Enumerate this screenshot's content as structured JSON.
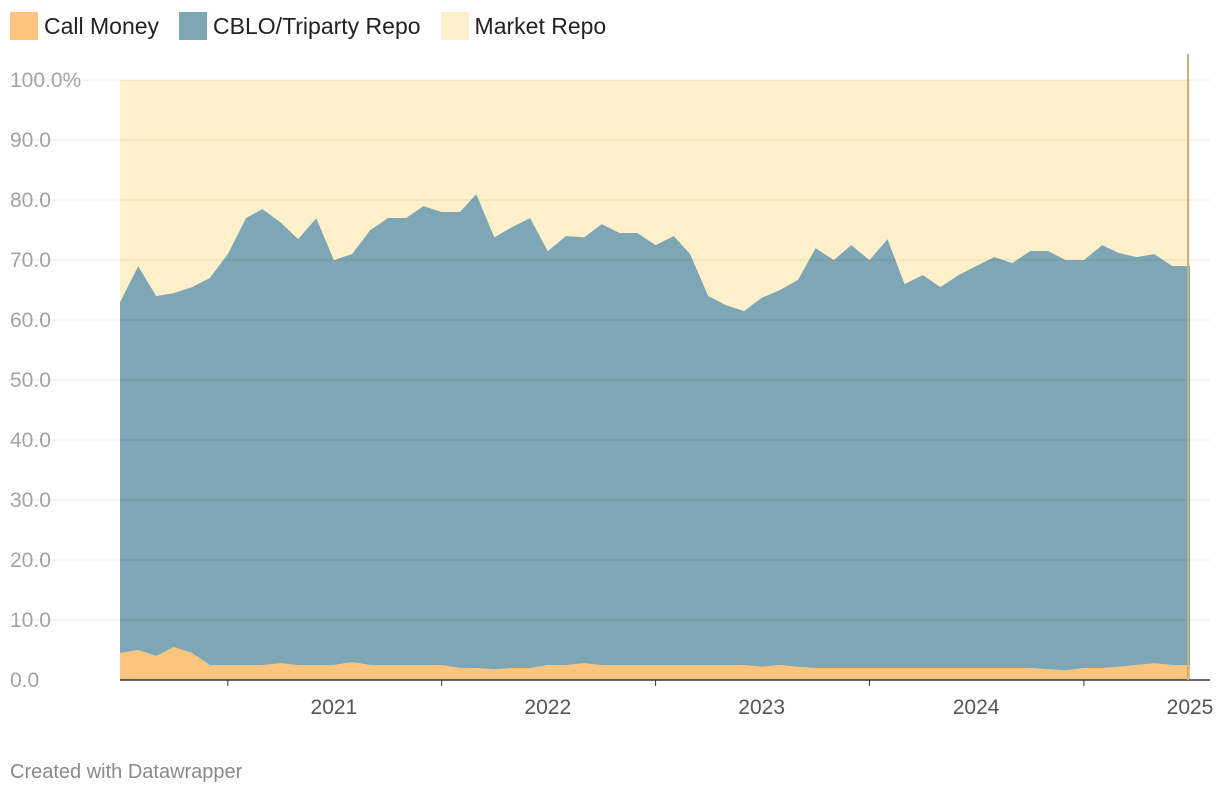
{
  "legend": [
    {
      "label": "Call Money",
      "color": "#fbc57f"
    },
    {
      "label": "CBLO/Triparty Repo",
      "color": "#7fa6b4"
    },
    {
      "label": "Market Repo",
      "color": "#fff0cc"
    }
  ],
  "credit": "Created with Datawrapper",
  "chart_data": {
    "type": "area",
    "stacked": true,
    "y_unit": "%",
    "ylim": [
      0,
      100
    ],
    "xlim": [
      "2020-07-01",
      "2025-07-01"
    ],
    "yticks": [
      "0.0",
      "10.0",
      "20.0",
      "30.0",
      "40.0",
      "50.0",
      "60.0",
      "70.0",
      "80.0",
      "90.0",
      "100.0%"
    ],
    "xticks": [
      "2021",
      "2022",
      "2023",
      "2024",
      "2025"
    ],
    "grid": "horizontal",
    "legend_position": "top-left",
    "x": [
      "2020-07-01",
      "2020-08-01",
      "2020-09-01",
      "2020-10-01",
      "2020-11-01",
      "2020-12-01",
      "2021-01-01",
      "2021-02-01",
      "2021-03-01",
      "2021-04-01",
      "2021-05-01",
      "2021-06-01",
      "2021-07-01",
      "2021-08-01",
      "2021-09-01",
      "2021-10-01",
      "2021-11-01",
      "2021-12-01",
      "2022-01-01",
      "2022-02-01",
      "2022-03-01",
      "2022-04-01",
      "2022-05-01",
      "2022-06-01",
      "2022-07-01",
      "2022-08-01",
      "2022-09-01",
      "2022-10-01",
      "2022-11-01",
      "2022-12-01",
      "2023-01-01",
      "2023-02-01",
      "2023-03-01",
      "2023-04-01",
      "2023-05-01",
      "2023-06-01",
      "2023-07-01",
      "2023-08-01",
      "2023-09-01",
      "2023-10-01",
      "2023-11-01",
      "2023-12-01",
      "2024-01-01",
      "2024-02-01",
      "2024-03-01",
      "2024-04-01",
      "2024-05-01",
      "2024-06-01",
      "2024-07-01",
      "2024-08-01",
      "2024-09-01",
      "2024-10-01",
      "2024-11-01",
      "2024-12-01",
      "2025-01-01",
      "2025-02-01",
      "2025-03-01",
      "2025-04-01",
      "2025-05-01",
      "2025-06-01",
      "2025-07-01"
    ],
    "series": [
      {
        "name": "Call Money",
        "color": "#fbc57f",
        "values": [
          4.5,
          5.0,
          4.0,
          5.5,
          4.5,
          2.5,
          2.5,
          2.5,
          2.5,
          2.8,
          2.5,
          2.5,
          2.5,
          3.0,
          2.5,
          2.5,
          2.5,
          2.5,
          2.5,
          2.0,
          2.0,
          1.8,
          2.0,
          2.0,
          2.5,
          2.5,
          2.8,
          2.5,
          2.5,
          2.5,
          2.5,
          2.5,
          2.5,
          2.5,
          2.5,
          2.5,
          2.2,
          2.5,
          2.2,
          2.0,
          2.0,
          2.0,
          2.0,
          2.0,
          2.0,
          2.0,
          2.0,
          2.0,
          2.0,
          2.0,
          2.0,
          2.0,
          1.8,
          1.6,
          2.0,
          2.0,
          2.2,
          2.5,
          2.8,
          2.5,
          2.5
        ]
      },
      {
        "name": "CBLO/Triparty Repo",
        "color": "#7fa6b4",
        "values": [
          58.5,
          64.0,
          60.0,
          59.0,
          61.0,
          64.5,
          68.5,
          74.5,
          76.0,
          73.5,
          71.0,
          74.5,
          67.5,
          68.0,
          72.5,
          74.5,
          74.5,
          76.5,
          75.5,
          76.0,
          79.0,
          72.0,
          73.5,
          75.0,
          69.0,
          71.5,
          71.0,
          73.5,
          72.0,
          72.0,
          70.0,
          71.5,
          68.5,
          61.5,
          60.0,
          59.0,
          61.5,
          62.5,
          64.5,
          70.0,
          68.0,
          70.5,
          68.0,
          71.5,
          64.0,
          65.5,
          63.5,
          65.5,
          67.0,
          68.5,
          67.5,
          69.5,
          69.7,
          68.4,
          68.0,
          70.5,
          69.0,
          68.0,
          68.2,
          66.5,
          66.5
        ]
      },
      {
        "name": "Market Repo",
        "color": "#fff0cc",
        "values": [
          37.0,
          31.0,
          36.0,
          35.5,
          34.5,
          33.0,
          29.0,
          23.0,
          21.5,
          23.7,
          26.5,
          23.0,
          30.0,
          29.0,
          25.0,
          23.0,
          23.0,
          21.0,
          22.0,
          22.0,
          19.0,
          26.2,
          24.5,
          23.0,
          28.5,
          26.0,
          26.2,
          24.0,
          25.5,
          25.5,
          27.5,
          26.0,
          29.0,
          36.0,
          37.5,
          38.5,
          36.3,
          35.0,
          33.3,
          28.0,
          30.0,
          27.5,
          30.0,
          26.5,
          34.0,
          32.5,
          34.5,
          32.5,
          31.0,
          29.5,
          30.5,
          28.5,
          28.5,
          30.0,
          30.0,
          27.5,
          28.8,
          29.5,
          29.0,
          31.0,
          31.0
        ]
      }
    ]
  }
}
